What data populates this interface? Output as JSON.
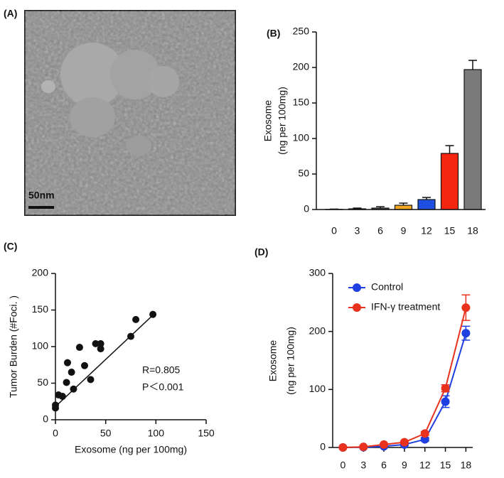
{
  "chart_data": [
    {
      "type": "image",
      "panel": "(A)",
      "scale_label": "50nm"
    },
    {
      "type": "bar",
      "panel": "(B)",
      "ylabel": [
        "Exosome",
        "(ng per 100mg)"
      ],
      "categories": [
        "0",
        "3",
        "6",
        "9",
        "12",
        "15",
        "18"
      ],
      "values": [
        0.3,
        1,
        2,
        6,
        14,
        79,
        197
      ],
      "errors": [
        0.3,
        1,
        2,
        3,
        3,
        11,
        13
      ],
      "colors": [
        "#ffffff",
        "#333333",
        "#555555",
        "#f5a623",
        "#1f4fe0",
        "#f5260f",
        "#7a7a7a"
      ],
      "ylim": [
        0,
        250
      ],
      "yticks": [
        0,
        50,
        100,
        150,
        200,
        250
      ]
    },
    {
      "type": "scatter",
      "panel": "(C)",
      "xlabel": "Exosome  (ng per 100mg)",
      "ylabel": "Tumor Burden (#Foci. )",
      "annotations": [
        "R=0.805",
        "P＜0.001"
      ],
      "x": [
        0,
        0,
        3,
        7,
        11,
        12,
        16,
        18,
        24,
        29,
        35,
        40,
        45,
        45,
        75,
        80,
        97
      ],
      "y": [
        16,
        20,
        34,
        32,
        51,
        78,
        65,
        42,
        99,
        74,
        55,
        104,
        97,
        104,
        114,
        137,
        144
      ],
      "fit": {
        "x": [
          0,
          97
        ],
        "y": [
          18,
          143
        ]
      },
      "xlim": [
        0,
        150
      ],
      "xticks": [
        0,
        50,
        100,
        150
      ],
      "ylim": [
        0,
        200
      ],
      "yticks": [
        0,
        50,
        100,
        150,
        200
      ]
    },
    {
      "type": "line",
      "panel": "(D)",
      "ylabel": [
        "Exosome",
        "(ng per 100mg)"
      ],
      "x": [
        0,
        3,
        6,
        9,
        12,
        15,
        18
      ],
      "series": [
        {
          "name": "Control",
          "color": "#1f3fe0",
          "values": [
            0,
            0.5,
            2,
            5,
            14,
            79,
            197
          ],
          "errors": [
            0,
            0.5,
            1,
            2,
            3,
            10,
            12
          ]
        },
        {
          "name": "IFN-γ treatment",
          "color": "#e8321e",
          "values": [
            0,
            1,
            5,
            9,
            24,
            102,
            241
          ],
          "errors": [
            0,
            0.5,
            1,
            2,
            3,
            6,
            22
          ]
        }
      ],
      "xlim": [
        -1.5,
        19
      ],
      "xticks": [
        0,
        3,
        6,
        9,
        12,
        15,
        18
      ],
      "ylim": [
        0,
        300
      ],
      "yticks": [
        0,
        100,
        200,
        300
      ],
      "legend": "upper left"
    }
  ]
}
